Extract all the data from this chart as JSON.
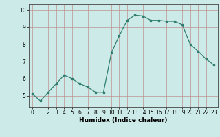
{
  "x": [
    0,
    1,
    2,
    3,
    4,
    5,
    6,
    7,
    8,
    9,
    10,
    11,
    12,
    13,
    14,
    15,
    16,
    17,
    18,
    19,
    20,
    21,
    22,
    23
  ],
  "y": [
    5.1,
    4.7,
    5.2,
    5.7,
    6.2,
    6.0,
    5.7,
    5.5,
    5.2,
    5.2,
    7.5,
    8.5,
    9.4,
    9.7,
    9.65,
    9.4,
    9.4,
    9.35,
    9.35,
    9.15,
    8.0,
    7.6,
    7.15,
    6.8
  ],
  "xlabel": "Humidex (Indice chaleur)",
  "xlim": [
    -0.5,
    23.5
  ],
  "ylim": [
    4.35,
    10.35
  ],
  "yticks": [
    5,
    6,
    7,
    8,
    9,
    10
  ],
  "xticks": [
    0,
    1,
    2,
    3,
    4,
    5,
    6,
    7,
    8,
    9,
    10,
    11,
    12,
    13,
    14,
    15,
    16,
    17,
    18,
    19,
    20,
    21,
    22,
    23
  ],
  "line_color": "#2e7d6e",
  "bg_color": "#cceae8",
  "grid_color": "#c09090",
  "tick_fontsize": 5.5,
  "label_fontsize": 6.5
}
